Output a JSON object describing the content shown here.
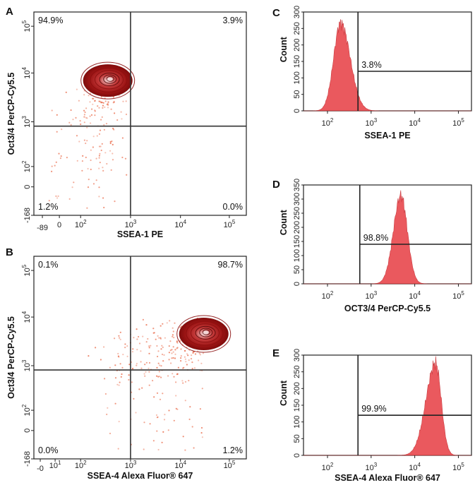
{
  "figure": {
    "panels": [
      {
        "letter": "A"
      },
      {
        "letter": "B"
      },
      {
        "letter": "C"
      },
      {
        "letter": "D"
      },
      {
        "letter": "E"
      }
    ]
  },
  "chart_data": [
    {
      "id": "A",
      "type": "scatter",
      "subtype": "flow-cytometry-density-contour",
      "xlabel": "SSEA-1 PE",
      "ylabel": "Oct3/4 PerCP-Cy5.5",
      "x_scale": "biexponential",
      "y_scale": "biexponential",
      "x_ticks": [
        "-89",
        "0",
        "10^2",
        "10^3",
        "10^4",
        "10^5"
      ],
      "y_ticks": [
        "-168",
        "0",
        "10^2",
        "10^3",
        "10^4",
        "10^5"
      ],
      "gate": {
        "x": 1000,
        "y": 800
      },
      "quadrants": {
        "upper_left": "94.9%",
        "upper_right": "3.9%",
        "lower_left": "1.2%",
        "lower_right": "0.0%"
      },
      "population_center": {
        "x": 350,
        "y": 7000
      },
      "colors": {
        "dots": "#e8603c",
        "contour": "#8b1010",
        "core": "#f2d6d6"
      }
    },
    {
      "id": "B",
      "type": "scatter",
      "subtype": "flow-cytometry-density-contour",
      "xlabel": "SSEA-4 Alexa Fluor® 647",
      "ylabel": "Oct3/4 PerCP-Cy5.5",
      "x_scale": "biexponential",
      "y_scale": "biexponential",
      "x_ticks": [
        "-0",
        "10^1",
        "10^2",
        "10^3",
        "10^4",
        "10^5"
      ],
      "y_ticks": [
        "-168",
        "0",
        "10^2",
        "10^3",
        "10^4",
        "10^5"
      ],
      "gate": {
        "x": 1000,
        "y": 800
      },
      "quadrants": {
        "upper_left": "0.1%",
        "upper_right": "98.7%",
        "lower_left": "0.0%",
        "lower_right": "1.2%"
      },
      "population_center": {
        "x": 30000,
        "y": 4500
      },
      "colors": {
        "dots": "#e8603c",
        "contour": "#8b1010",
        "core": "#f2d6d6"
      }
    },
    {
      "id": "C",
      "type": "area",
      "subtype": "histogram",
      "xlabel": "SSEA-1 PE",
      "ylabel": "Count",
      "x_scale": "log",
      "x_ticks": [
        "10^2",
        "10^3",
        "10^4",
        "10^5"
      ],
      "y_ticks": [
        "0",
        "50",
        "100",
        "150",
        "200",
        "250",
        "300"
      ],
      "ylim": [
        0,
        300
      ],
      "gate_x": 500,
      "gate_label": "3.8%",
      "peak": {
        "x": 200,
        "count": 290
      },
      "colors": {
        "fill": "#e8484d"
      }
    },
    {
      "id": "D",
      "type": "area",
      "subtype": "histogram",
      "xlabel": "OCT3/4 PerCP-Cy5.5",
      "ylabel": "Count",
      "x_scale": "log",
      "x_ticks": [
        "10^2",
        "10^3",
        "10^4",
        "10^5"
      ],
      "y_ticks": [
        "0",
        "50",
        "100",
        "150",
        "200",
        "250",
        "300",
        "350"
      ],
      "ylim": [
        0,
        350
      ],
      "gate_x": 550,
      "gate_label": "98.8%",
      "peak": {
        "x": 4800,
        "count": 340
      },
      "colors": {
        "fill": "#e8484d"
      }
    },
    {
      "id": "E",
      "type": "area",
      "subtype": "histogram",
      "xlabel": "SSEA-4 Alexa Fluor® 647",
      "ylabel": "Count",
      "x_scale": "log",
      "x_ticks": [
        "10^2",
        "10^3",
        "10^4",
        "10^5"
      ],
      "y_ticks": [
        "0",
        "50",
        "100",
        "150",
        "200",
        "250",
        "300"
      ],
      "ylim": [
        0,
        300
      ],
      "gate_x": 500,
      "gate_label": "99.9%",
      "peak": {
        "x": 30000,
        "count": 300
      },
      "colors": {
        "fill": "#e8484d"
      }
    }
  ]
}
